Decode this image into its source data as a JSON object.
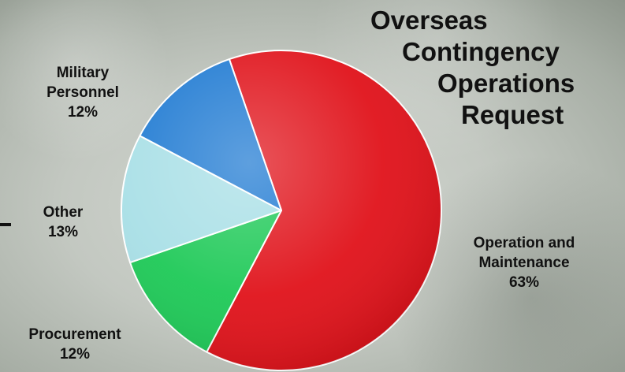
{
  "title_lines": [
    "Overseas",
    "Contingency",
    "Operations",
    "Request"
  ],
  "chart_data": {
    "type": "pie",
    "title": "Overseas Contingency Operations Request",
    "slices": [
      {
        "name": "Operation and Maintenance",
        "label_lines": [
          "Operation and",
          "Maintenance"
        ],
        "value_label": "63%",
        "value": 63,
        "color": "#e0121a"
      },
      {
        "name": "Procurement",
        "label_lines": [
          "Procurement"
        ],
        "value_label": "12%",
        "value": 12,
        "color": "#1ec957"
      },
      {
        "name": "Other",
        "label_lines": [
          "Other"
        ],
        "value_label": "13%",
        "value": 13,
        "color": "#a8dfe6"
      },
      {
        "name": "Military Personnel",
        "label_lines": [
          "Military",
          "Personnel"
        ],
        "value_label": "12%",
        "value": 12,
        "color": "#1f7ad2"
      }
    ],
    "start_angle_deg": -19,
    "direction": "clockwise",
    "legend": "none"
  }
}
